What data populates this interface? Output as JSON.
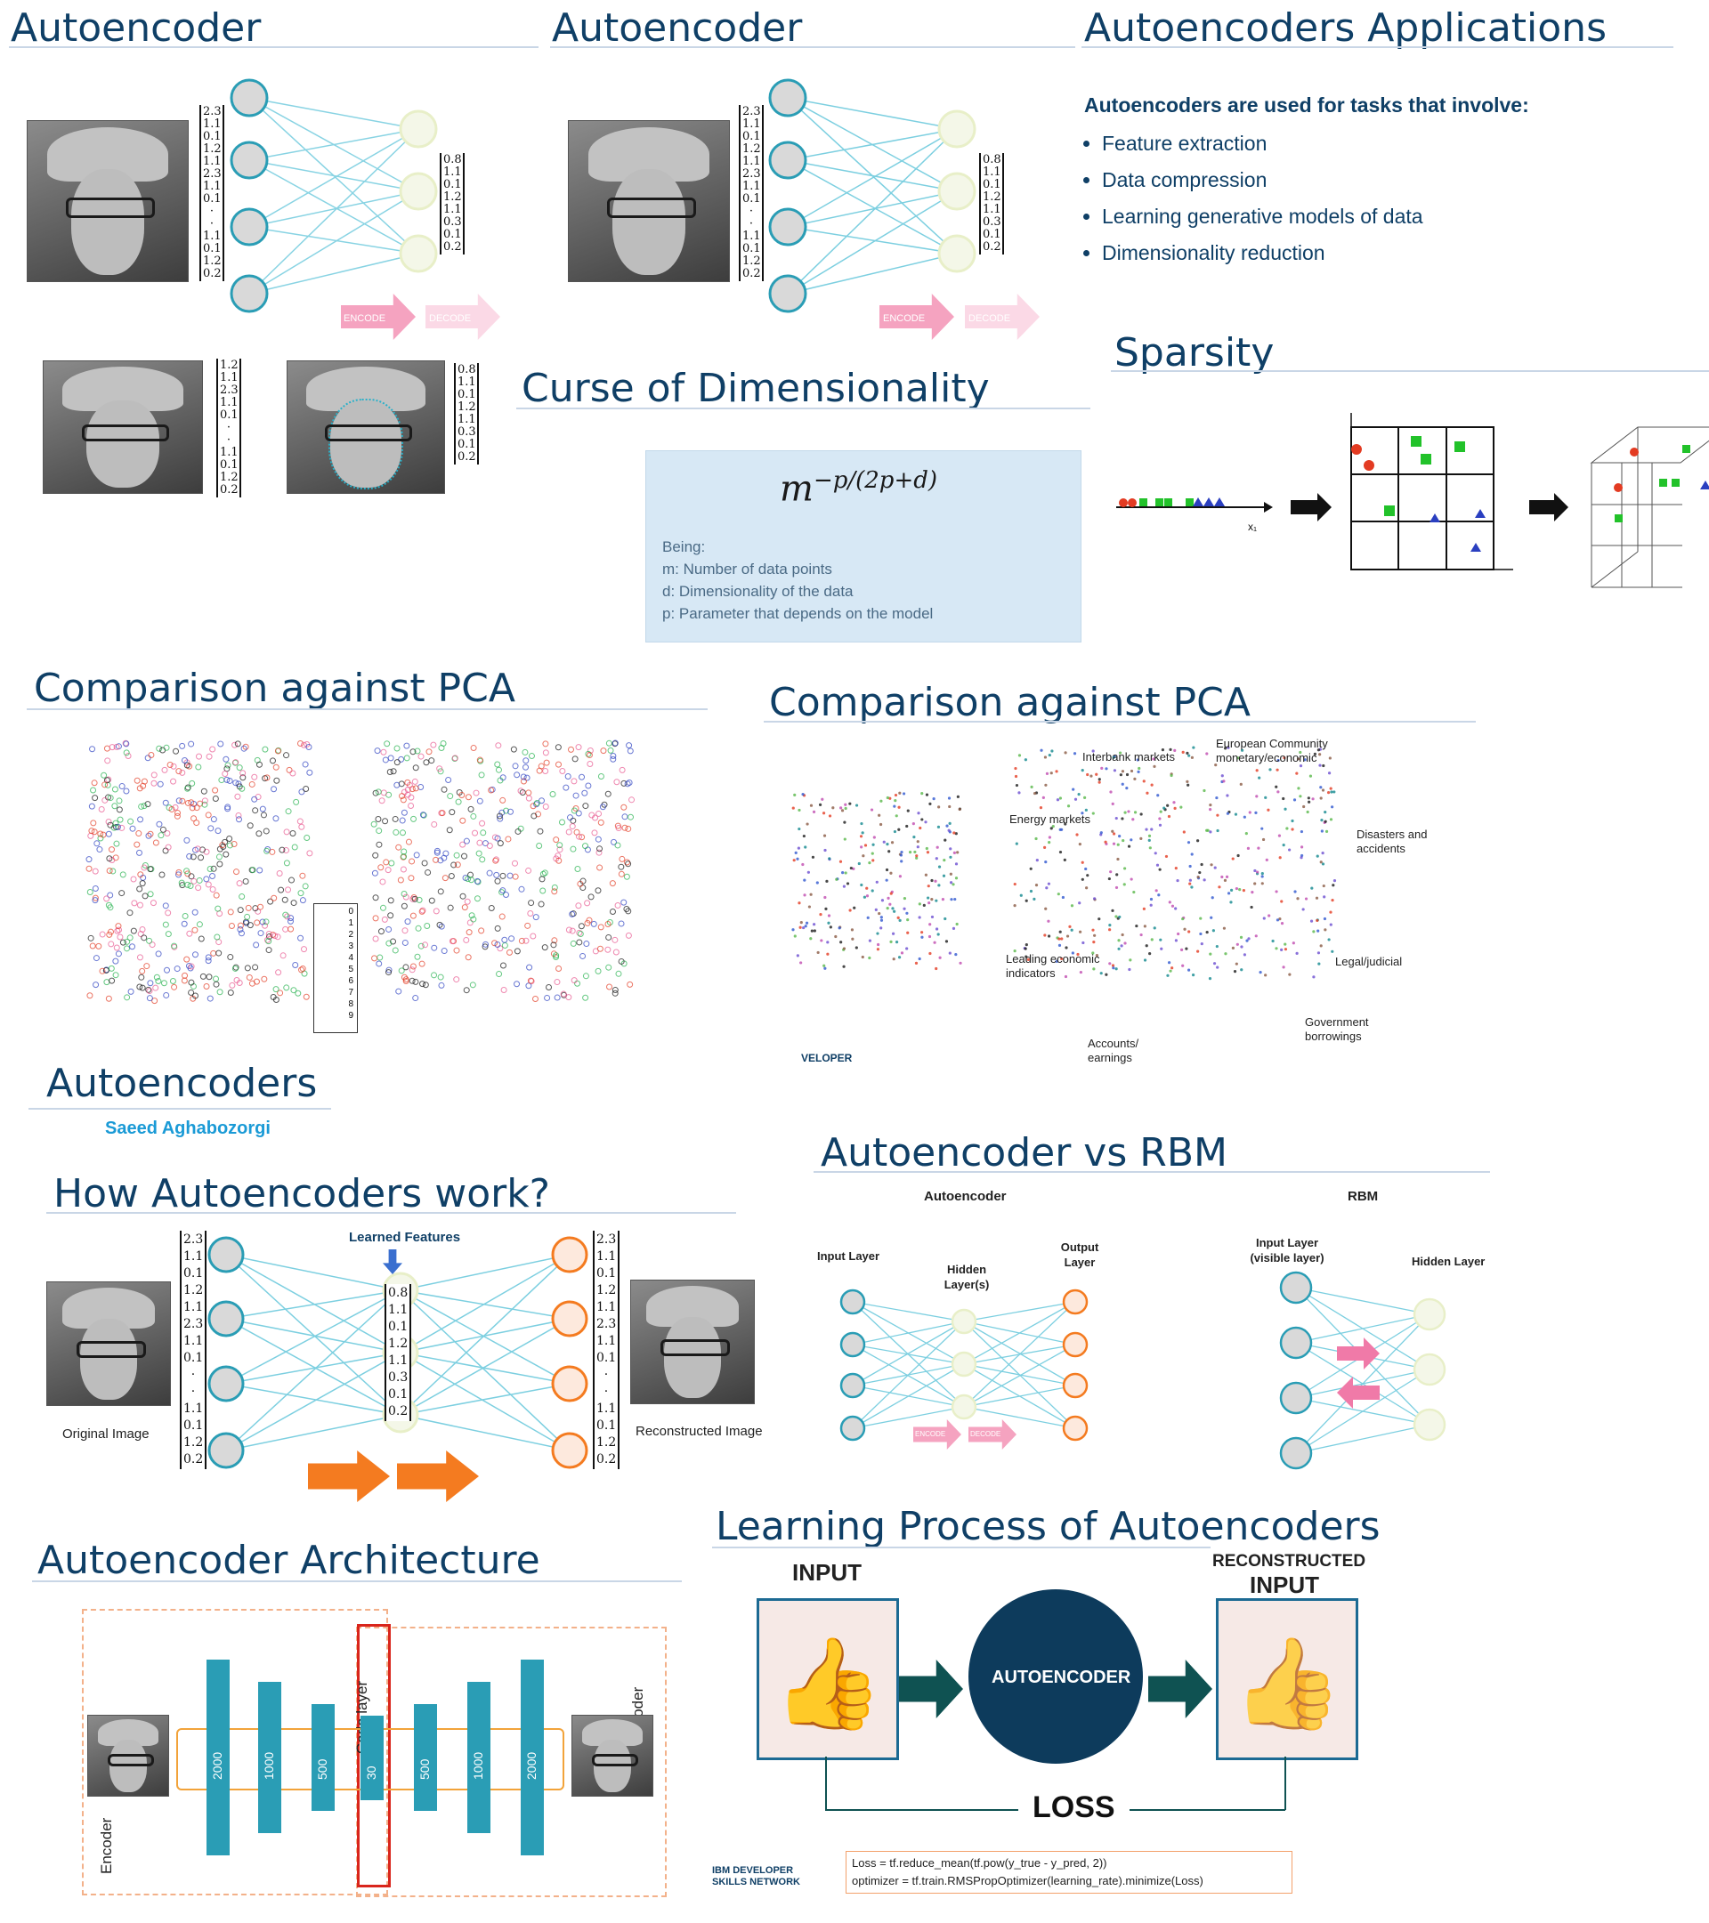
{
  "slides": {
    "autoencoder_a": {
      "title": "Autoencoder",
      "encode": "ENCODE",
      "decode": "DECODE",
      "vec_in": [
        "2.3",
        "1.1",
        "0.1",
        "1.2",
        "1.1",
        "2.3",
        "1.1",
        "0.1",
        "·",
        "·",
        "1.1",
        "0.1",
        "1.2",
        "0.2"
      ],
      "vec_out": [
        "0.8",
        "1.1",
        "0.1",
        "1.2",
        "1.1",
        "0.3",
        "0.1",
        "0.2"
      ],
      "vec_small": [
        "1.2",
        "1.1",
        "2.3",
        "1.1",
        "0.1",
        "·",
        "·",
        "1.1",
        "0.1",
        "1.2",
        "0.2"
      ]
    },
    "autoencoder_b": {
      "title": "Autoencoder",
      "encode": "ENCODE",
      "decode": "DECODE"
    },
    "applications": {
      "title": "Autoencoders Applications",
      "lead": "Autoencoders are used for tasks that involve:",
      "items": [
        "Feature extraction",
        "Data compression",
        "Learning generative models of data",
        "Dimensionality reduction"
      ]
    },
    "sparsity": {
      "title": "Sparsity",
      "axis_x": "x",
      "axis_y": "x"
    },
    "curse": {
      "title": "Curse of Dimensionality",
      "formula_base": "m",
      "formula_exp": "−p/(2p+d)",
      "being": "Being:",
      "lines": [
        "m: Number of data points",
        "d: Dimensionality of the data",
        "p: Parameter that depends on the model"
      ]
    },
    "pca1": {
      "title": "Comparison against PCA",
      "legend": [
        "0",
        "1",
        "2",
        "3",
        "4",
        "5",
        "6",
        "7",
        "8",
        "9"
      ]
    },
    "pca2": {
      "title": "Comparison against PCA",
      "labels": [
        "Interbank markets",
        "European Community monetary/economic",
        "Energy markets",
        "Disasters and accidents",
        "Leading economic indicators",
        "Legal/judicial",
        "Accounts/ earnings",
        "Government borrowings"
      ],
      "footer": "IBM DEVELOPER"
    },
    "autoencoders_title": {
      "title": "Autoencoders",
      "author": "Saeed Aghabozorgi"
    },
    "how": {
      "title": "How Autoencoders work?",
      "learned": "Learned Features",
      "original": "Original Image",
      "reconstructed": "Reconstructed Image",
      "vec_in": [
        "2.3",
        "1.1",
        "0.1",
        "1.2",
        "1.1",
        "2.3",
        "1.1",
        "0.1",
        "·",
        "·",
        "1.1",
        "0.1",
        "1.2",
        "0.2"
      ],
      "vec_mid": [
        "0.8",
        "1.1",
        "0.1",
        "1.2",
        "1.1",
        "0.3",
        "0.1",
        "0.2"
      ]
    },
    "vs": {
      "title": "Autoencoder vs RBM",
      "ae": "Autoencoder",
      "rbm": "RBM",
      "input": "Input Layer",
      "hidden": "Hidden Layer(s)",
      "output": "Output Layer",
      "rbm_input": "Input Layer (visible layer)",
      "rbm_hidden": "Hidden Layer",
      "encode": "ENCODE",
      "decode": "DECODE"
    },
    "arch": {
      "title": "Autoencoder Architecture",
      "code": "Code layer",
      "decoder": "Decoder",
      "encoder": "Encoder",
      "bars": [
        "2000",
        "1000",
        "500",
        "30",
        "500",
        "1000",
        "2000"
      ],
      "w": "w"
    },
    "learning": {
      "title": "Learning Process of Autoencoders",
      "input": "INPUT",
      "reconstructed": "RECONSTRUCTED",
      "reconstructed2": "INPUT",
      "center": "AUTOENCODER",
      "loss": "LOSS",
      "brand": "IBM DEVELOPER SKILLS NETWORK",
      "code": [
        "Loss = tf.reduce_mean(tf.pow(y_true - y_pred, 2))",
        "optimizer = tf.train.RMSPropOptimizer(learning_rate).minimize(Loss)"
      ]
    }
  },
  "colors": {
    "title": "#0f3f66",
    "encode": "#f5a3c0",
    "orange": "#f47b20",
    "teal": "#2a9db5",
    "navy": "#0d3b5c",
    "formula_bg": "#d7e8f5"
  }
}
